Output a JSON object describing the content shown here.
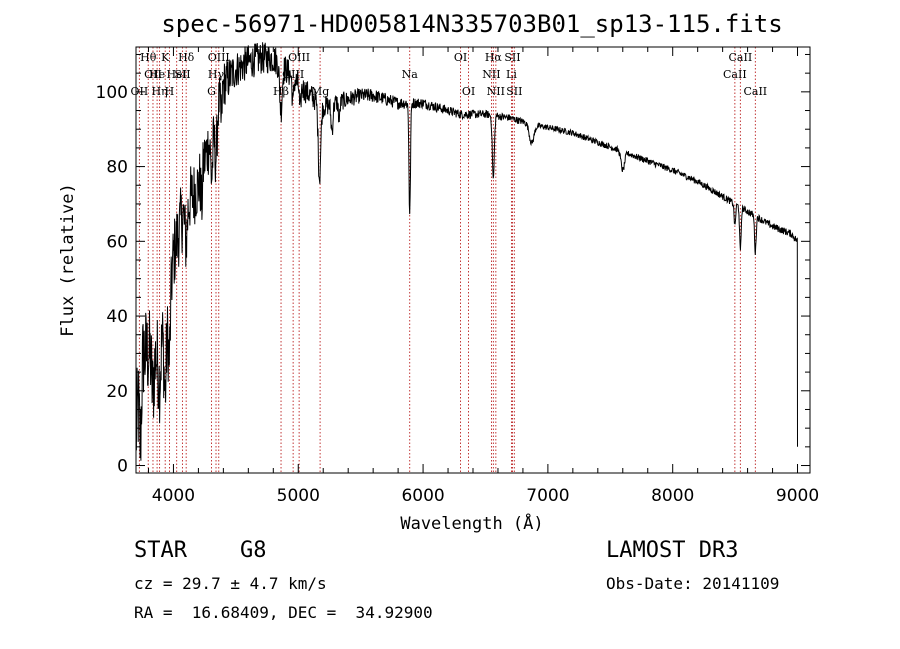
{
  "chart_data": {
    "type": "line",
    "title": "spec-56971-HD005814N335703B01_sp13-115.fits",
    "xlabel": "Wavelength (Å)",
    "ylabel": "Flux (relative)",
    "xlim": [
      3700,
      9100
    ],
    "ylim": [
      -2,
      112
    ],
    "xticks": [
      4000,
      5000,
      6000,
      7000,
      8000,
      9000
    ],
    "yticks": [
      0,
      20,
      40,
      60,
      80,
      100
    ],
    "x_minor_step": 200,
    "y_minor_step": 5,
    "continuum": [
      [
        3700,
        8
      ],
      [
        3720,
        18
      ],
      [
        3760,
        30
      ],
      [
        3800,
        30
      ],
      [
        3850,
        28
      ],
      [
        3900,
        34
      ],
      [
        3950,
        36
      ],
      [
        4000,
        56
      ],
      [
        4050,
        64
      ],
      [
        4100,
        70
      ],
      [
        4150,
        72
      ],
      [
        4200,
        75
      ],
      [
        4250,
        82
      ],
      [
        4300,
        88
      ],
      [
        4350,
        96
      ],
      [
        4400,
        102
      ],
      [
        4450,
        104
      ],
      [
        4500,
        106
      ],
      [
        4600,
        108
      ],
      [
        4700,
        109
      ],
      [
        4800,
        109
      ],
      [
        4900,
        106
      ],
      [
        5000,
        102
      ],
      [
        5100,
        99
      ],
      [
        5200,
        96
      ],
      [
        5300,
        97
      ],
      [
        5400,
        98
      ],
      [
        5500,
        99
      ],
      [
        5600,
        99
      ],
      [
        5700,
        98
      ],
      [
        5800,
        97
      ],
      [
        5900,
        97
      ],
      [
        6000,
        97
      ],
      [
        6100,
        96
      ],
      [
        6200,
        95
      ],
      [
        6300,
        94
      ],
      [
        6400,
        94
      ],
      [
        6500,
        94
      ],
      [
        6600,
        93.5
      ],
      [
        6700,
        93
      ],
      [
        6800,
        92
      ],
      [
        6900,
        91
      ],
      [
        7000,
        90.5
      ],
      [
        7200,
        89
      ],
      [
        7400,
        86.5
      ],
      [
        7600,
        84
      ],
      [
        7800,
        81.5
      ],
      [
        8000,
        79
      ],
      [
        8200,
        76
      ],
      [
        8400,
        72
      ],
      [
        8600,
        68
      ],
      [
        8800,
        64
      ],
      [
        8950,
        62
      ],
      [
        9000,
        60
      ]
    ],
    "noise": [
      [
        3700,
        14
      ],
      [
        4000,
        10
      ],
      [
        4300,
        8
      ],
      [
        4500,
        5
      ],
      [
        5000,
        3.5
      ],
      [
        5500,
        2
      ],
      [
        6000,
        1.4
      ],
      [
        7000,
        0.8
      ],
      [
        8500,
        0.9
      ],
      [
        9000,
        1
      ]
    ],
    "absorption": [
      {
        "x": 3735,
        "depth": 16,
        "width": 8
      },
      {
        "x": 3834,
        "depth": 9,
        "width": 8
      },
      {
        "x": 3889,
        "depth": 10,
        "width": 10
      },
      {
        "x": 3933,
        "depth": 16,
        "width": 8
      },
      {
        "x": 3968,
        "depth": 14,
        "width": 8
      },
      {
        "x": 4101,
        "depth": 10,
        "width": 10
      },
      {
        "x": 4226,
        "depth": 9,
        "width": 6
      },
      {
        "x": 4307,
        "depth": 12,
        "width": 8
      },
      {
        "x": 4340,
        "depth": 12,
        "width": 10
      },
      {
        "x": 4383,
        "depth": 8,
        "width": 6
      },
      {
        "x": 4861,
        "depth": 12,
        "width": 10
      },
      {
        "x": 4957,
        "depth": 7,
        "width": 6
      },
      {
        "x": 5015,
        "depth": 7,
        "width": 6
      },
      {
        "x": 5170,
        "depth": 20,
        "width": 10
      },
      {
        "x": 5270,
        "depth": 7,
        "width": 8
      },
      {
        "x": 5328,
        "depth": 5,
        "width": 6
      },
      {
        "x": 5893,
        "depth": 30,
        "width": 6
      },
      {
        "x": 6563,
        "depth": 17,
        "width": 8
      },
      {
        "x": 6870,
        "depth": 5,
        "width": 18
      },
      {
        "x": 7600,
        "depth": 5,
        "width": 14
      },
      {
        "x": 8498,
        "depth": 6,
        "width": 6
      },
      {
        "x": 8542,
        "depth": 12,
        "width": 6
      },
      {
        "x": 8662,
        "depth": 10,
        "width": 6
      }
    ],
    "line_markers": [
      {
        "x": 3727,
        "label": "OII",
        "row": 2
      },
      {
        "x": 3798,
        "label": "Hθ",
        "row": 0
      },
      {
        "x": 3836,
        "label": "OII",
        "row": 1
      },
      {
        "x": 3869,
        "label": "He",
        "row": 1
      },
      {
        "x": 3889,
        "label": "Hη",
        "row": 2
      },
      {
        "x": 3934,
        "label": "K",
        "row": 0
      },
      {
        "x": 3968,
        "label": "H",
        "row": 2
      },
      {
        "x": 4026,
        "label": "HeI",
        "row": 1
      },
      {
        "x": 4072,
        "label": "SII",
        "row": 1
      },
      {
        "x": 4102,
        "label": "Hδ",
        "row": 0
      },
      {
        "x": 4305,
        "label": "G",
        "row": 2
      },
      {
        "x": 4341,
        "label": "Hγ",
        "row": 1
      },
      {
        "x": 4363,
        "label": "OIII",
        "row": 0
      },
      {
        "x": 4862,
        "label": "Hβ",
        "row": 2
      },
      {
        "x": 4959,
        "label": "OIII",
        "row": 1
      },
      {
        "x": 5007,
        "label": "OIII",
        "row": 0
      },
      {
        "x": 5175,
        "label": "Mg",
        "row": 2
      },
      {
        "x": 5893,
        "label": "Na",
        "row": 1
      },
      {
        "x": 6300,
        "label": "OI",
        "row": 0
      },
      {
        "x": 6364,
        "label": "OI",
        "row": 2
      },
      {
        "x": 6548,
        "label": "NII",
        "row": 1
      },
      {
        "x": 6563,
        "label": "Hα",
        "row": 0
      },
      {
        "x": 6583,
        "label": "NII",
        "row": 2
      },
      {
        "x": 6708,
        "label": "Li",
        "row": 1
      },
      {
        "x": 6716,
        "label": "SII",
        "row": 0
      },
      {
        "x": 6731,
        "label": "SII",
        "row": 2
      },
      {
        "x": 8498,
        "label": "CaII",
        "row": 1
      },
      {
        "x": 8542,
        "label": "CaII",
        "row": 0
      },
      {
        "x": 8662,
        "label": "CaII",
        "row": 2
      }
    ]
  },
  "info": {
    "object_class": "STAR",
    "subclass": "G8",
    "survey": "LAMOST DR3",
    "cz": "cz = 29.7 ± 4.7 km/s",
    "obs_date": "Obs-Date: 20141109",
    "coords": "RA =  16.68409, DEC =  34.92900"
  }
}
